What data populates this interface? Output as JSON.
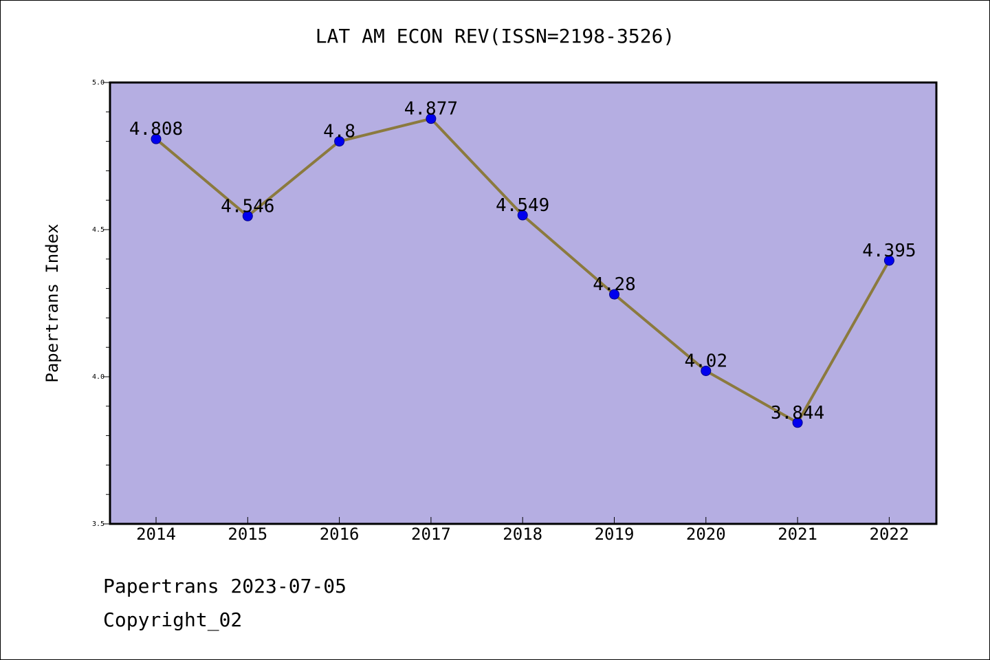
{
  "chart_data": {
    "type": "line",
    "title": "LAT AM ECON REV(ISSN=2198-3526)",
    "xlabel": "",
    "ylabel": "Papertrans Index",
    "categories": [
      "2014",
      "2015",
      "2016",
      "2017",
      "2018",
      "2019",
      "2020",
      "2021",
      "2022"
    ],
    "series": [
      {
        "values": [
          4.808,
          4.546,
          4.8,
          4.877,
          4.549,
          4.28,
          4.02,
          3.844,
          4.395
        ],
        "labels": [
          "4.808",
          "4.546",
          "4.8",
          "4.877",
          "4.549",
          "4.28",
          "4.02",
          "3.844",
          "4.395"
        ]
      }
    ],
    "ylim": [
      3.5,
      5.0
    ],
    "yticks": [
      "3.5",
      "4.0",
      "4.5",
      "5.0"
    ],
    "yminor_step": 0.1,
    "grid": false,
    "legend": "none",
    "colors": {
      "plot_background": "#b5aee2",
      "line": "#8b7a3e",
      "marker": "#0000ee",
      "marker_edge": "#00008b"
    }
  },
  "footer": {
    "line1": "Papertrans 2023-07-05",
    "line2": "Copyright_02"
  }
}
